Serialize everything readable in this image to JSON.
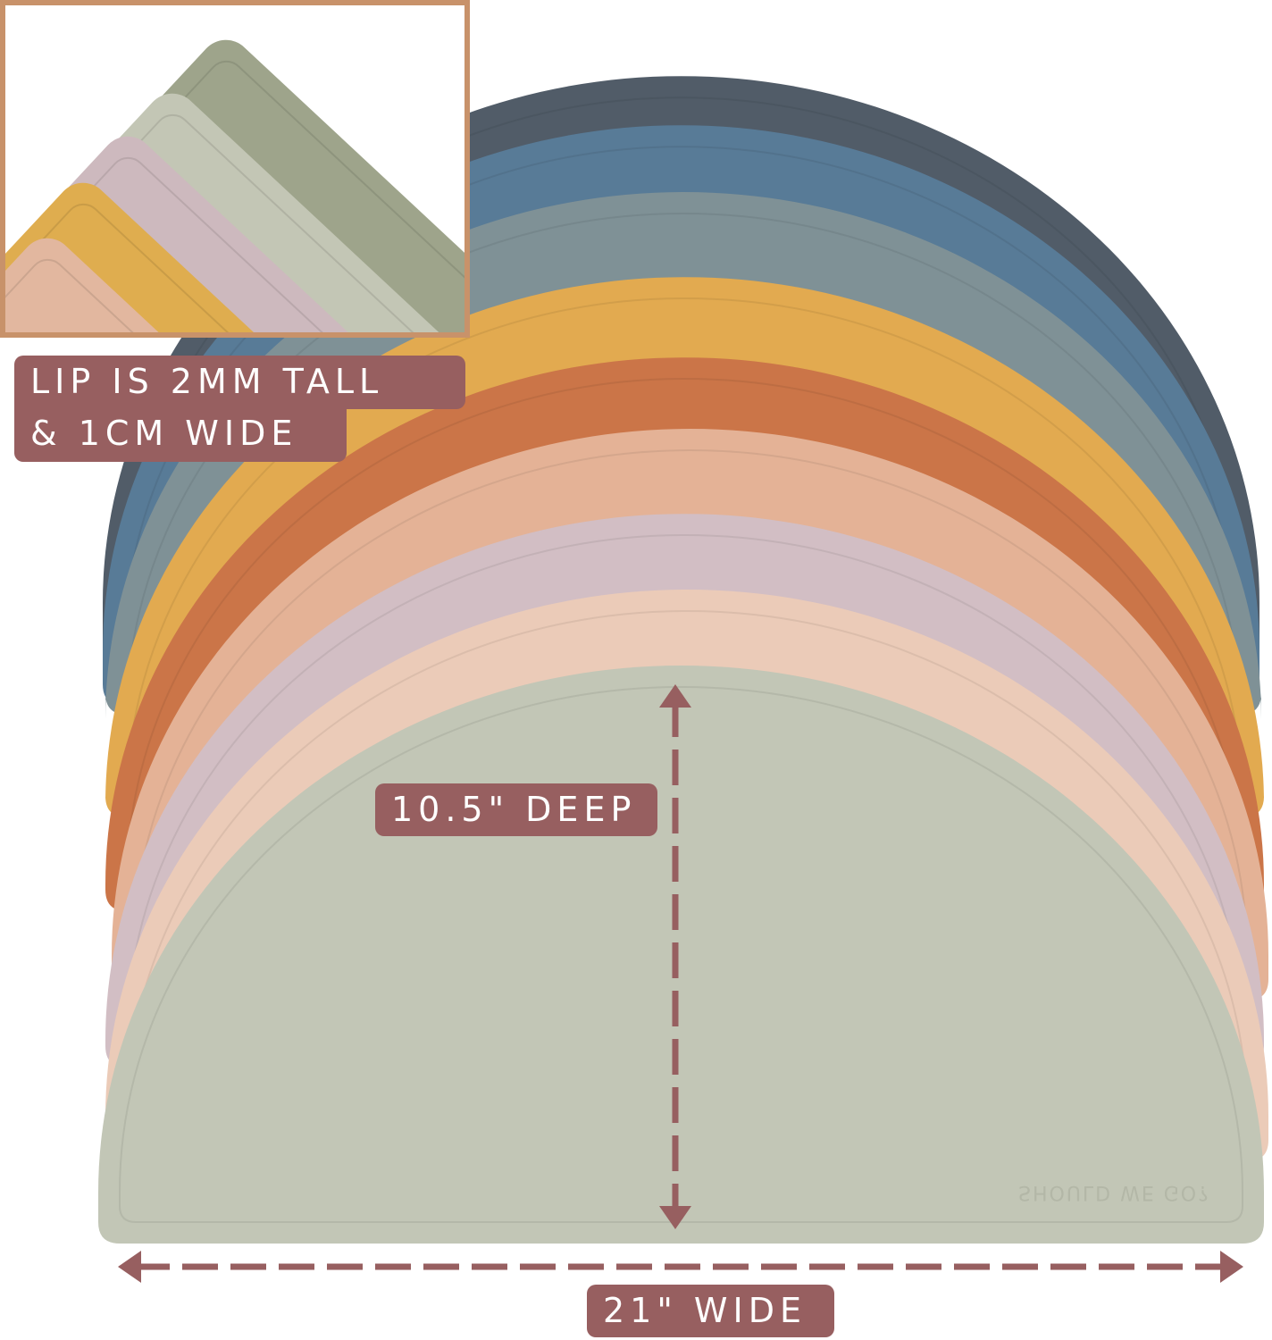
{
  "labels": {
    "lip_line1": "LIP IS 2MM TALL",
    "lip_line2": "& 1CM WIDE",
    "depth": "10.5\" DEEP",
    "width": "21\" WIDE"
  },
  "brand_emboss": "SHOULD WE GO?",
  "colors": {
    "label_bg": "#975f60",
    "inset_frame": "#c8926a",
    "mats": [
      "#515c68",
      "#587b97",
      "#7f9196",
      "#e2aa50",
      "#cb7548",
      "#e4b296",
      "#d2bec4",
      "#ebcbb8",
      "#c2c6b6"
    ],
    "inset_mats": [
      "#9ea48b",
      "#c3c6b5",
      "#cdb9be",
      "#dfad4f",
      "#e2b79f"
    ]
  }
}
